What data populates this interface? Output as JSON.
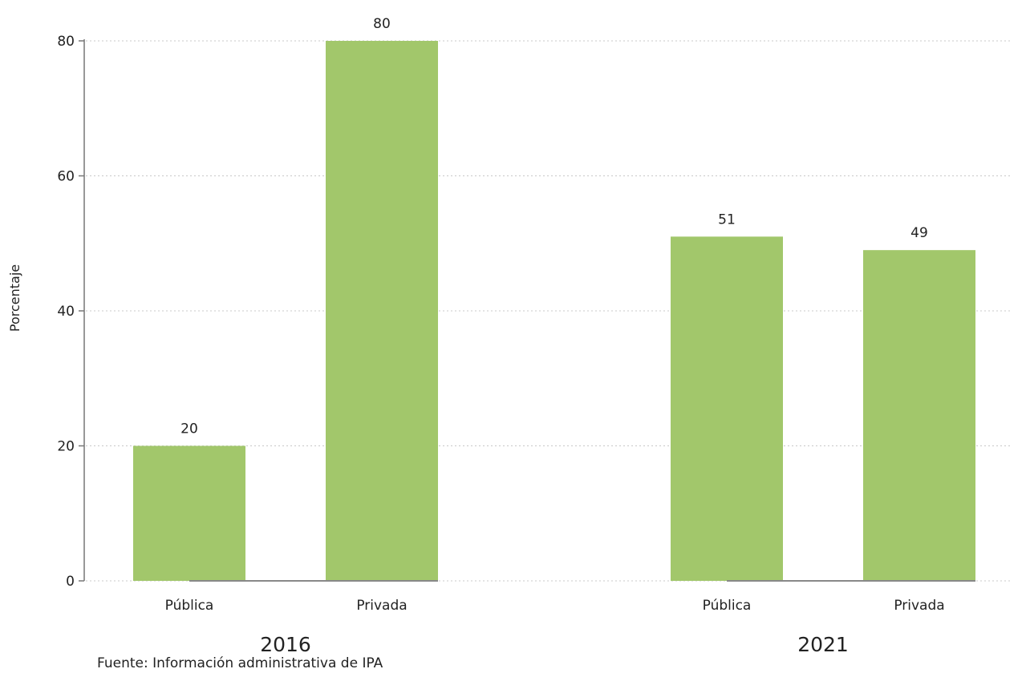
{
  "chart_data": {
    "type": "bar",
    "ylabel": "Porcentaje",
    "ylim": [
      0,
      80
    ],
    "yticks": [
      0,
      20,
      40,
      60,
      80
    ],
    "grid": true,
    "bar_color": "#a2c76b",
    "groups": [
      {
        "label": "2016",
        "categories": [
          "Pública",
          "Privada"
        ],
        "values": [
          20,
          80
        ]
      },
      {
        "label": "2021",
        "categories": [
          "Pública",
          "Privada"
        ],
        "values": [
          51,
          49
        ]
      }
    ]
  },
  "source": "Fuente: Información administrativa de IPA"
}
